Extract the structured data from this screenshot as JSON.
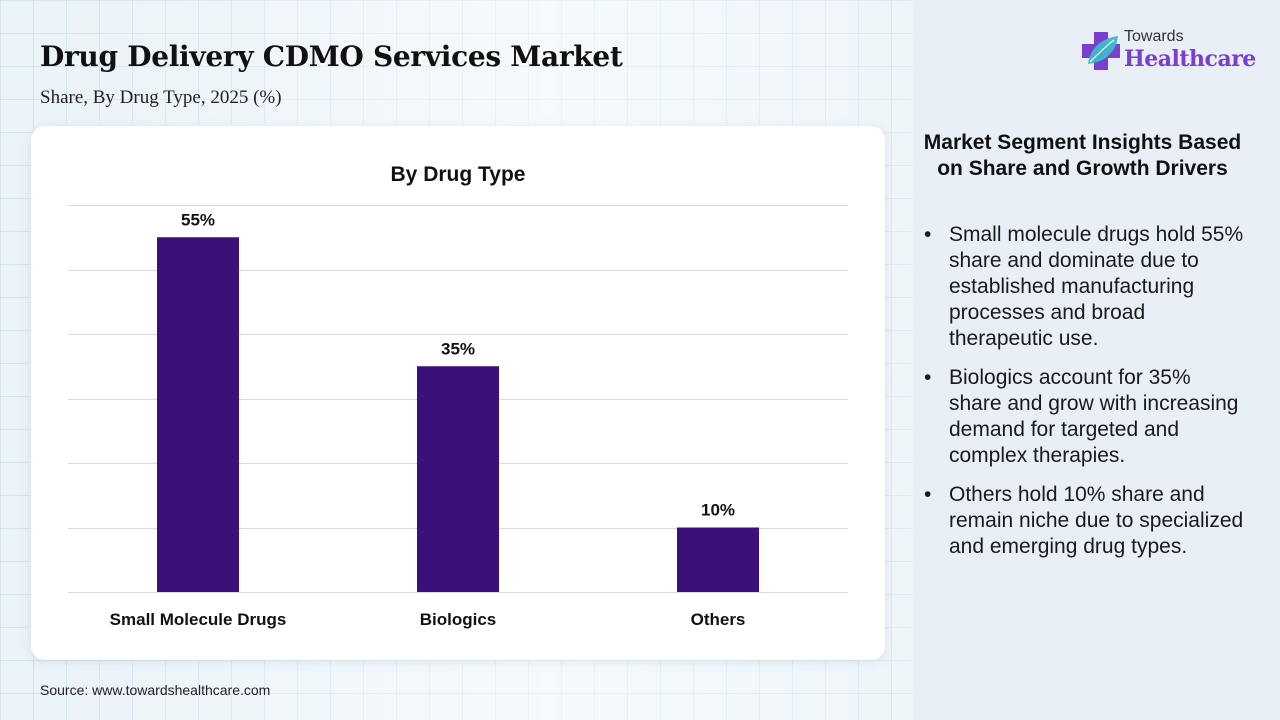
{
  "header": {
    "title": "Drug Delivery CDMO Services Market",
    "subtitle": "Share, By Drug Type, 2025 (%)"
  },
  "logo": {
    "line1": "Towards",
    "line2": "Healthcare",
    "icon": "medical-cross-leaf-icon",
    "colors": {
      "cross": "#7b3fcf",
      "leaf": "#3fb8c9"
    }
  },
  "chart_data": {
    "type": "bar",
    "title": "By Drug Type",
    "categories": [
      "Small Molecule Drugs",
      "Biologics",
      "Others"
    ],
    "values": [
      55,
      35,
      10
    ],
    "data_labels": [
      "55%",
      "35%",
      "10%"
    ],
    "xlabel": "",
    "ylabel": "",
    "ylim": [
      0,
      60
    ],
    "ytick_step": 10,
    "y_tick_labels_visible": false,
    "grid": true,
    "legend": "none",
    "bar_color": "#3b1078",
    "grid_color": "#d9d9d9"
  },
  "source": "Source: www.towardshealthcare.com",
  "insights": {
    "title": "Market Segment Insights Based on Share and Growth Drivers",
    "bullet": "•",
    "items": [
      "Small molecule drugs hold 55% share and dominate due to established manufacturing processes and broad therapeutic use.",
      "Biologics account for 35% share and grow with increasing demand for targeted and complex therapies.",
      "Others hold 10% share and remain niche due to specialized and emerging drug types."
    ]
  }
}
